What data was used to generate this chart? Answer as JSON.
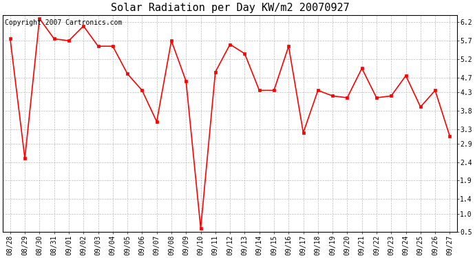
{
  "title": "Solar Radiation per Day KW/m2 20070927",
  "copyright": "Copyright 2007 Cartronics.com",
  "labels": [
    "08/28",
    "08/29",
    "08/30",
    "08/31",
    "09/01",
    "09/02",
    "09/03",
    "09/04",
    "09/05",
    "09/06",
    "09/07",
    "09/08",
    "09/09",
    "09/10",
    "09/11",
    "09/12",
    "09/13",
    "09/14",
    "09/15",
    "09/16",
    "09/17",
    "09/18",
    "09/19",
    "09/20",
    "09/21",
    "09/22",
    "09/23",
    "09/24",
    "09/25",
    "09/26",
    "09/27"
  ],
  "values": [
    5.75,
    2.5,
    6.3,
    5.75,
    5.7,
    6.1,
    5.55,
    5.55,
    4.8,
    4.35,
    3.5,
    5.7,
    4.6,
    0.6,
    4.85,
    5.6,
    5.35,
    4.35,
    4.35,
    5.55,
    3.2,
    4.35,
    4.2,
    4.15,
    4.95,
    4.15,
    4.2,
    4.75,
    3.9,
    4.35,
    3.1
  ],
  "line_color": "#FF0000",
  "marker_color": "#FF0000",
  "bg_color": "#FFFFFF",
  "grid_color": "#BBBBBB",
  "ylim": [
    0.5,
    6.4
  ],
  "yticks": [
    0.5,
    1.0,
    1.4,
    1.9,
    2.4,
    2.9,
    3.3,
    3.8,
    4.3,
    4.7,
    5.2,
    5.7,
    6.2
  ],
  "title_fontsize": 11,
  "copyright_fontsize": 7,
  "tick_fontsize": 7
}
